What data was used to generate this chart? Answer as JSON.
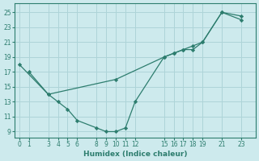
{
  "line1_x": [
    0,
    3,
    4,
    5,
    6,
    8,
    9,
    10,
    11,
    12,
    15,
    16,
    17,
    18,
    19,
    21,
    23
  ],
  "line1_y": [
    18,
    14,
    13,
    12,
    10.5,
    9.5,
    9,
    9,
    9.5,
    13,
    19,
    19.5,
    20,
    20,
    21,
    25,
    24
  ],
  "line2_x": [
    1,
    3,
    10,
    15,
    16,
    17,
    18,
    19,
    21,
    23
  ],
  "line2_y": [
    17,
    14,
    16,
    19,
    19.5,
    20,
    20.5,
    21,
    25,
    24.5
  ],
  "line_color": "#2d7d6e",
  "bg_color": "#cdeaed",
  "grid_color": "#aed4d8",
  "xlabel": "Humidex (Indice chaleur)",
  "xticks": [
    0,
    1,
    3,
    4,
    5,
    6,
    8,
    9,
    10,
    11,
    12,
    15,
    16,
    17,
    18,
    19,
    21,
    23
  ],
  "yticks": [
    9,
    11,
    13,
    15,
    17,
    19,
    21,
    23,
    25
  ],
  "xlim": [
    -0.5,
    24.5
  ],
  "ylim": [
    8.2,
    26.2
  ]
}
